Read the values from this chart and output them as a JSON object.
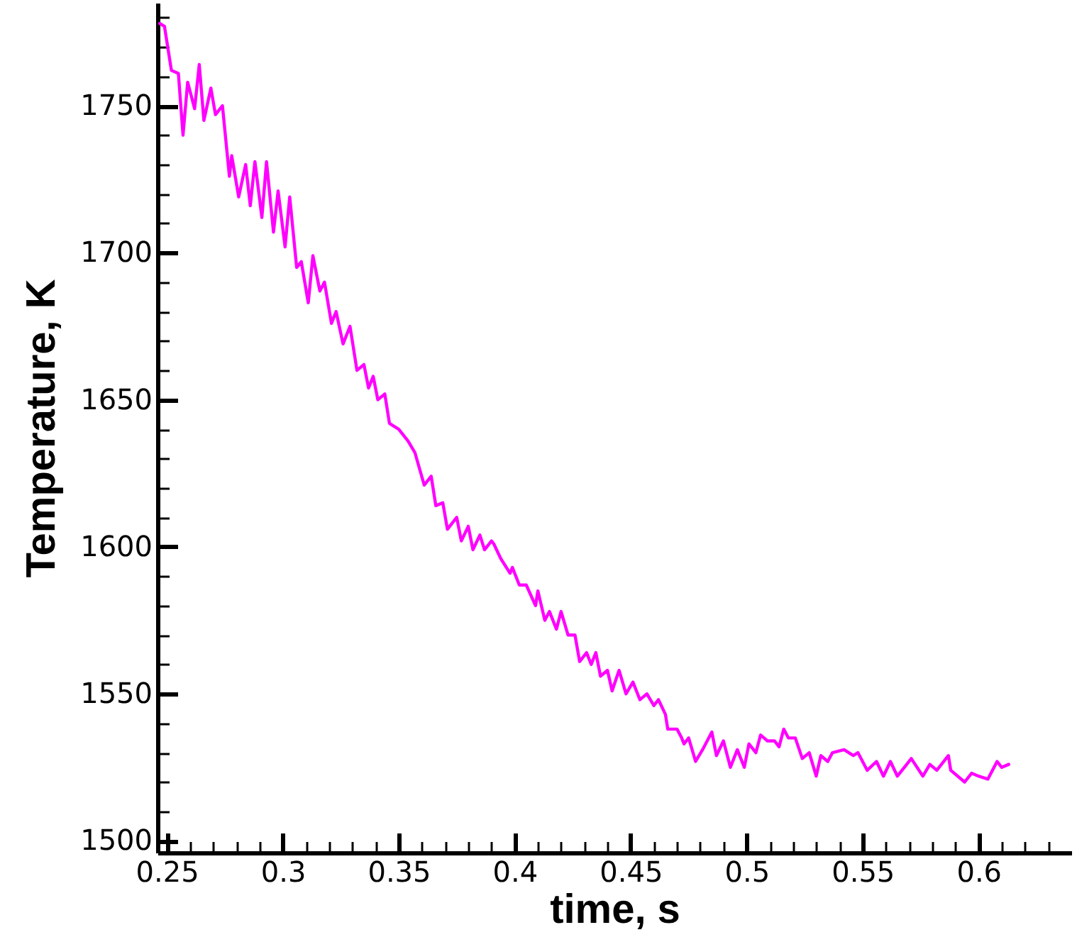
{
  "chart_data": {
    "type": "line",
    "xlabel": "time, s",
    "ylabel": "Temperature, K",
    "xlim": [
      0.246,
      0.64
    ],
    "ylim": [
      1496,
      1785
    ],
    "xticks": [
      0.25,
      {
        "value": 0.26,
        "label": null
      },
      {
        "value": 0.27,
        "label": null
      },
      {
        "value": 0.28,
        "label": null
      },
      {
        "value": 0.29,
        "label": null
      },
      0.3,
      {
        "value": 0.31,
        "label": null
      },
      {
        "value": 0.32,
        "label": null
      },
      {
        "value": 0.33,
        "label": null
      },
      {
        "value": 0.34,
        "label": null
      },
      0.35,
      {
        "value": 0.36,
        "label": null
      },
      {
        "value": 0.37,
        "label": null
      },
      {
        "value": 0.38,
        "label": null
      },
      {
        "value": 0.39,
        "label": null
      },
      0.4,
      {
        "value": 0.41,
        "label": null
      },
      {
        "value": 0.42,
        "label": null
      },
      {
        "value": 0.43,
        "label": null
      },
      {
        "value": 0.44,
        "label": null
      },
      0.45,
      {
        "value": 0.46,
        "label": null
      },
      {
        "value": 0.47,
        "label": null
      },
      {
        "value": 0.48,
        "label": null
      },
      {
        "value": 0.49,
        "label": null
      },
      0.5,
      {
        "value": 0.51,
        "label": null
      },
      {
        "value": 0.52,
        "label": null
      },
      {
        "value": 0.53,
        "label": null
      },
      {
        "value": 0.54,
        "label": null
      },
      0.55,
      {
        "value": 0.56,
        "label": null
      },
      {
        "value": 0.57,
        "label": null
      },
      {
        "value": 0.58,
        "label": null
      },
      {
        "value": 0.59,
        "label": null
      },
      0.6,
      {
        "value": 0.61,
        "label": null
      },
      {
        "value": 0.62,
        "label": null
      },
      {
        "value": 0.63,
        "label": null
      }
    ],
    "yticks": [
      1500,
      {
        "value": 1510,
        "label": null
      },
      {
        "value": 1520,
        "label": null
      },
      {
        "value": 1530,
        "label": null
      },
      {
        "value": 1540,
        "label": null
      },
      1550,
      {
        "value": 1560,
        "label": null
      },
      {
        "value": 1570,
        "label": null
      },
      {
        "value": 1580,
        "label": null
      },
      {
        "value": 1590,
        "label": null
      },
      1600,
      {
        "value": 1610,
        "label": null
      },
      {
        "value": 1620,
        "label": null
      },
      {
        "value": 1630,
        "label": null
      },
      {
        "value": 1640,
        "label": null
      },
      1650,
      {
        "value": 1660,
        "label": null
      },
      {
        "value": 1670,
        "label": null
      },
      {
        "value": 1680,
        "label": null
      },
      {
        "value": 1690,
        "label": null
      },
      1700,
      {
        "value": 1710,
        "label": null
      },
      {
        "value": 1720,
        "label": null
      },
      {
        "value": 1730,
        "label": null
      },
      {
        "value": 1740,
        "label": null
      },
      1750,
      {
        "value": 1760,
        "label": null
      },
      {
        "value": 1770,
        "label": null
      },
      {
        "value": 1780,
        "label": null
      }
    ],
    "grid": false,
    "marker": "none",
    "line_style": "solid",
    "series": [
      {
        "color": "#ff00ff",
        "x": [
          0.247,
          0.249,
          0.252,
          0.255,
          0.257,
          0.259,
          0.262,
          0.264,
          0.266,
          0.269,
          0.271,
          0.274,
          0.277,
          0.278,
          0.281,
          0.284,
          0.286,
          0.288,
          0.291,
          0.293,
          0.296,
          0.298,
          0.301,
          0.303,
          0.306,
          0.308,
          0.311,
          0.313,
          0.316,
          0.318,
          0.321,
          0.323,
          0.326,
          0.329,
          0.332,
          0.335,
          0.337,
          0.339,
          0.341,
          0.344,
          0.346,
          0.35,
          0.354,
          0.357,
          0.361,
          0.364,
          0.366,
          0.369,
          0.371,
          0.375,
          0.377,
          0.38,
          0.382,
          0.385,
          0.387,
          0.39,
          0.391,
          0.394,
          0.398,
          0.399,
          0.402,
          0.405,
          0.409,
          0.41,
          0.413,
          0.415,
          0.418,
          0.42,
          0.423,
          0.426,
          0.428,
          0.431,
          0.433,
          0.435,
          0.437,
          0.44,
          0.442,
          0.445,
          0.448,
          0.451,
          0.454,
          0.457,
          0.46,
          0.462,
          0.465,
          0.466,
          0.47,
          0.472,
          0.473,
          0.475,
          0.478,
          0.481,
          0.485,
          0.487,
          0.49,
          0.493,
          0.496,
          0.499,
          0.501,
          0.504,
          0.506,
          0.509,
          0.512,
          0.514,
          0.516,
          0.518,
          0.521,
          0.524,
          0.527,
          0.53,
          0.532,
          0.535,
          0.537,
          0.542,
          0.546,
          0.548,
          0.552,
          0.556,
          0.559,
          0.562,
          0.565,
          0.568,
          0.571,
          0.576,
          0.579,
          0.582,
          0.587,
          0.588,
          0.594,
          0.597,
          0.6,
          0.604,
          0.608,
          0.61,
          0.613
        ],
        "values": [
          1778,
          1777,
          1762,
          1761,
          1740,
          1758,
          1749,
          1764,
          1745,
          1756,
          1747,
          1750,
          1726,
          1733,
          1719,
          1730,
          1716,
          1731,
          1712,
          1731,
          1707,
          1721,
          1702,
          1719,
          1695,
          1697,
          1683,
          1699,
          1687,
          1690,
          1676,
          1680,
          1669,
          1675,
          1660,
          1662,
          1654,
          1658,
          1650,
          1652,
          1642,
          1640,
          1636,
          1632,
          1621,
          1624,
          1614,
          1615,
          1606,
          1610,
          1602,
          1607,
          1599,
          1604,
          1599,
          1602,
          1601,
          1596,
          1591,
          1593,
          1587,
          1587,
          1580,
          1585,
          1575,
          1578,
          1572,
          1578,
          1570,
          1570,
          1561,
          1564,
          1560,
          1564,
          1556,
          1558,
          1551,
          1558,
          1550,
          1554,
          1548,
          1550,
          1546,
          1548,
          1543,
          1538,
          1538,
          1535,
          1533,
          1535,
          1527,
          1531,
          1537,
          1529,
          1534,
          1525,
          1531,
          1525,
          1533,
          1530,
          1536,
          1534,
          1534,
          1532,
          1538,
          1535,
          1535,
          1528,
          1530,
          1522,
          1529,
          1527,
          1530,
          1531,
          1529,
          1530,
          1524,
          1527,
          1522,
          1527,
          1522,
          1525,
          1528,
          1522,
          1526,
          1524,
          1529,
          1524,
          1520,
          1523,
          1522,
          1521,
          1527,
          1525,
          1526
        ]
      }
    ]
  }
}
